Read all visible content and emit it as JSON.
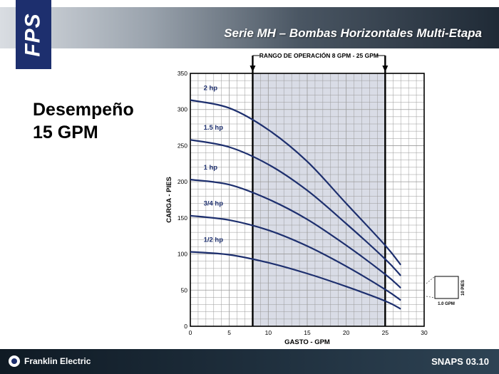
{
  "header": {
    "logo_text": "FPS",
    "title": "Serie MH – Bombas Horizontales Multi-Etapa"
  },
  "slide": {
    "title_line1": "Desempeño",
    "title_line2": "15 GPM"
  },
  "footer": {
    "brand": "Franklin Electric",
    "code": "SNAPS 03.10"
  },
  "colors": {
    "curve": "#1d2f6e",
    "operating_band": "#d9dce6",
    "grid": "#9a9a9a"
  },
  "chart_data": {
    "type": "line",
    "xlabel": "GASTO - GPM",
    "ylabel": "CARGA - PIES",
    "xlim": [
      0,
      30
    ],
    "ylim": [
      0,
      350
    ],
    "x_ticks": [
      0,
      5,
      10,
      15,
      20,
      25,
      30
    ],
    "y_ticks": [
      0,
      50,
      100,
      150,
      200,
      250,
      300,
      350
    ],
    "grid": true,
    "operating_range": {
      "label": "RANGO DE OPERACIÓN 8 GPM - 25 GPM",
      "from": 8,
      "to": 25
    },
    "scale_box": {
      "x_label": "1.0 GPM",
      "y_label": "10 PIES"
    },
    "series": [
      {
        "name": "2 hp",
        "x": [
          0,
          5,
          10,
          15,
          20,
          25,
          27
        ],
        "y": [
          313,
          302,
          272,
          228,
          170,
          112,
          85
        ]
      },
      {
        "name": "1.5 hp",
        "x": [
          0,
          5,
          10,
          15,
          20,
          25,
          27
        ],
        "y": [
          258,
          248,
          224,
          188,
          142,
          93,
          70
        ]
      },
      {
        "name": "1 hp",
        "x": [
          0,
          5,
          10,
          15,
          20,
          25,
          27
        ],
        "y": [
          203,
          196,
          176,
          148,
          112,
          72,
          53
        ]
      },
      {
        "name": "3/4 hp",
        "x": [
          0,
          5,
          10,
          15,
          20,
          25,
          27
        ],
        "y": [
          153,
          147,
          133,
          111,
          83,
          51,
          36
        ]
      },
      {
        "name": "1/2 hp",
        "x": [
          0,
          5,
          10,
          15,
          20,
          25,
          27
        ],
        "y": [
          103,
          99,
          88,
          73,
          55,
          35,
          24
        ]
      }
    ]
  }
}
